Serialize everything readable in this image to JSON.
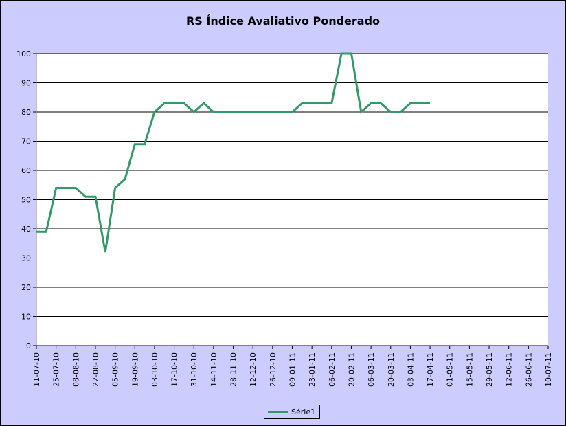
{
  "chart_data": {
    "type": "line",
    "title": "RS Índice Avaliativo Ponderado",
    "xlabel": "",
    "ylabel": "",
    "ylim": [
      0,
      100
    ],
    "y_ticks": [
      0,
      10,
      20,
      30,
      40,
      50,
      60,
      70,
      80,
      90,
      100
    ],
    "x_ticks": [
      "11-07-10",
      "25-07-10",
      "08-08-10",
      "22-08-10",
      "05-09-10",
      "19-09-10",
      "03-10-10",
      "17-10-10",
      "31-10-10",
      "14-11-10",
      "28-11-10",
      "12-12-10",
      "26-12-10",
      "09-01-11",
      "23-01-11",
      "06-02-11",
      "20-02-11",
      "06-03-11",
      "20-03-11",
      "03-04-11",
      "17-04-11",
      "01-05-11",
      "15-05-11",
      "29-05-11",
      "12-06-11",
      "26-06-11",
      "10-07-11"
    ],
    "grid": true,
    "legend_position": "bottom",
    "line_color": "#339966",
    "series": [
      {
        "name": "Série1",
        "x": [
          "11-07-10",
          "18-07-10",
          "25-07-10",
          "01-08-10",
          "08-08-10",
          "15-08-10",
          "22-08-10",
          "29-08-10",
          "05-09-10",
          "12-09-10",
          "19-09-10",
          "26-09-10",
          "03-10-10",
          "10-10-10",
          "17-10-10",
          "24-10-10",
          "31-10-10",
          "07-11-10",
          "14-11-10",
          "21-11-10",
          "28-11-10",
          "05-12-10",
          "12-12-10",
          "19-12-10",
          "26-12-10",
          "02-01-11",
          "09-01-11",
          "16-01-11",
          "23-01-11",
          "30-01-11",
          "06-02-11",
          "13-02-11",
          "20-02-11",
          "27-02-11",
          "06-03-11",
          "13-03-11",
          "20-03-11",
          "27-03-11",
          "03-04-11",
          "10-04-11",
          "17-04-11"
        ],
        "values": [
          39,
          39,
          54,
          54,
          54,
          51,
          51,
          32,
          54,
          57,
          69,
          69,
          80,
          83,
          83,
          83,
          80,
          83,
          80,
          80,
          80,
          80,
          80,
          80,
          80,
          80,
          80,
          83,
          83,
          83,
          83,
          100,
          100,
          80,
          83,
          83,
          80,
          80,
          83,
          83,
          83
        ]
      }
    ]
  }
}
